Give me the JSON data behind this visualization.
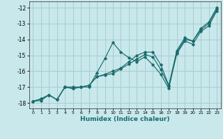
{
  "xlabel": "Humidex (Indice chaleur)",
  "xlim": [
    -0.5,
    23.5
  ],
  "ylim": [
    -18.35,
    -11.6
  ],
  "yticks": [
    -18,
    -17,
    -16,
    -15,
    -14,
    -13,
    -12
  ],
  "xticks": [
    0,
    1,
    2,
    3,
    4,
    5,
    6,
    7,
    8,
    9,
    10,
    11,
    12,
    13,
    14,
    15,
    16,
    17,
    18,
    19,
    20,
    21,
    22,
    23
  ],
  "background_color": "#c8e8ec",
  "grid_color": "#a8ccd0",
  "line_color": "#1a6b6b",
  "lines": [
    {
      "y": [
        -17.9,
        -17.75,
        -17.5,
        -17.8,
        -17.0,
        -17.0,
        -17.0,
        -17.0,
        -16.1,
        -15.2,
        -14.2,
        -14.8,
        -15.15,
        -15.4,
        -15.1,
        -15.6,
        -16.2,
        -17.1,
        -14.8,
        -14.0,
        -14.1,
        -13.4,
        -13.0,
        -12.1
      ]
    },
    {
      "y": [
        -17.9,
        -17.75,
        -17.5,
        -17.8,
        -17.0,
        -17.1,
        -17.0,
        -16.9,
        -16.35,
        -16.25,
        -16.15,
        -15.85,
        -15.55,
        -15.25,
        -14.95,
        -15.1,
        -15.9,
        -16.95,
        -14.9,
        -14.1,
        -14.3,
        -13.5,
        -13.15,
        -12.2
      ]
    },
    {
      "y": [
        -17.9,
        -17.85,
        -17.5,
        -17.8,
        -17.0,
        -17.1,
        -17.0,
        -16.9,
        -16.35,
        -16.2,
        -16.0,
        -15.8,
        -15.4,
        -15.0,
        -14.8,
        -14.8,
        -15.6,
        -16.9,
        -14.7,
        -13.9,
        -14.1,
        -13.3,
        -12.9,
        -12.0
      ]
    }
  ]
}
